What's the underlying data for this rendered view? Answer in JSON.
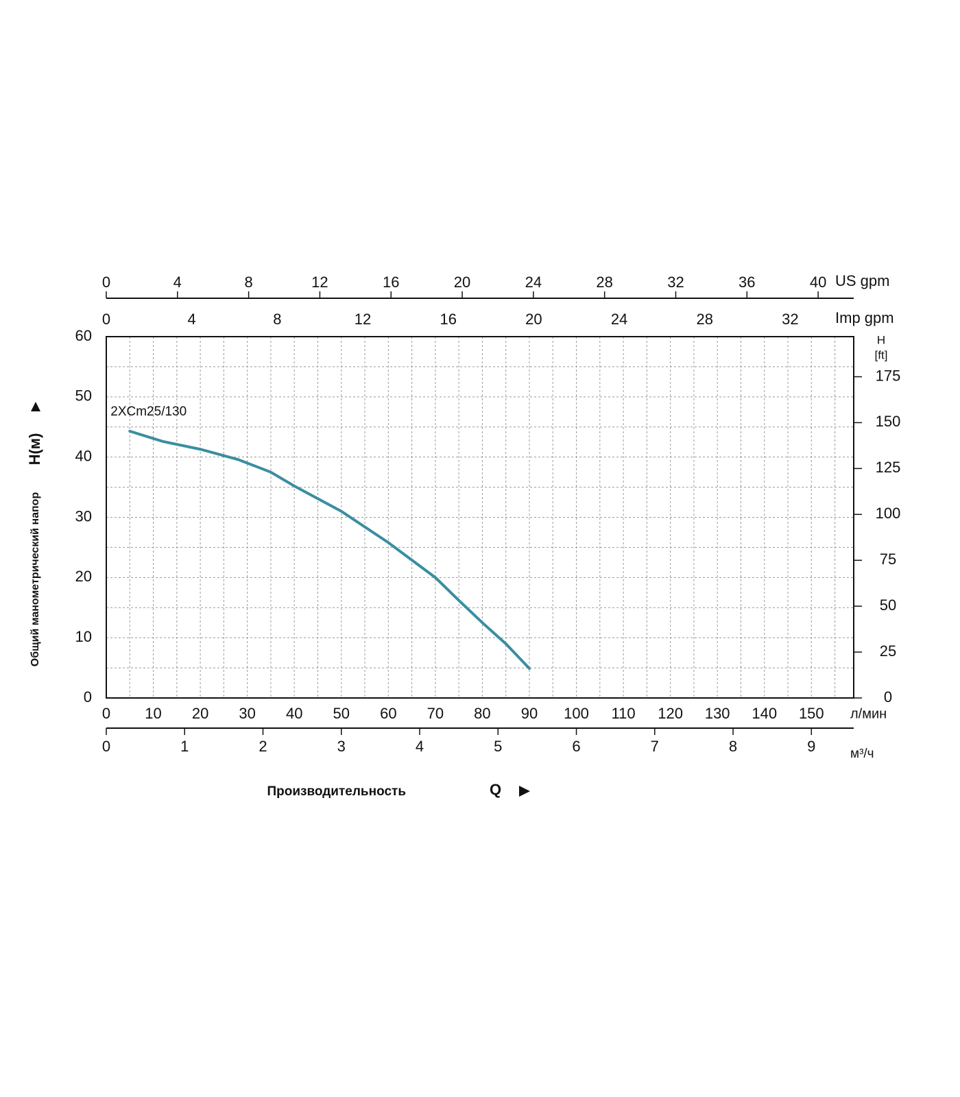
{
  "chart_data": {
    "type": "line",
    "series": [
      {
        "name": "2XCm25/130",
        "color": "#3a8ea0",
        "values": [
          44.3,
          42.6,
          41.3,
          39.6,
          37.5,
          35.2,
          31.0,
          25.8,
          20.0,
          16.2,
          12.5,
          9.0,
          4.9
        ]
      }
    ],
    "x": [
      5,
      12,
      20,
      28,
      35,
      40,
      50,
      60,
      70,
      75,
      80,
      85,
      90
    ],
    "xlim": [
      0,
      159
    ],
    "xticks": [
      0,
      10,
      20,
      30,
      40,
      50,
      60,
      70,
      80,
      90,
      100,
      110,
      120,
      130,
      140,
      150
    ],
    "minor_xticks": [
      5,
      15,
      25,
      35,
      45,
      55,
      65,
      75,
      85,
      95,
      105,
      115,
      125,
      135,
      145,
      155
    ],
    "xunit": "л/мин",
    "ylim": [
      0,
      60
    ],
    "yticks": [
      0,
      10,
      20,
      30,
      40,
      50,
      60
    ],
    "minor_yticks": [
      5,
      15,
      25,
      35,
      45,
      55
    ],
    "y2lim": [
      0,
      196.85
    ],
    "y2ticks": [
      0,
      25,
      50,
      75,
      100,
      125,
      150,
      175
    ],
    "y2label": [
      "H",
      "[ft]"
    ],
    "grid": true,
    "ylabel": "Общий манометрический напор",
    "ylabel_symbol": "H(м)",
    "xlabel": "Производительность",
    "xlabel_symbol": "Q",
    "extra_x_axes": [
      {
        "label": "US gpm",
        "position": "top",
        "xlim": [
          0,
          42.0
        ],
        "xticks": [
          0,
          4,
          8,
          12,
          16,
          20,
          24,
          28,
          32,
          36,
          40
        ]
      },
      {
        "label": "Imp gpm",
        "position": "top",
        "xlim": [
          0,
          34.97
        ],
        "xticks": [
          0,
          4,
          8,
          12,
          16,
          20,
          24,
          28,
          32
        ]
      },
      {
        "label": "м³/ч",
        "position": "bottom",
        "xlim": [
          0,
          9.54
        ],
        "xticks": [
          0,
          1,
          2,
          3,
          4,
          5,
          6,
          7,
          8,
          9
        ]
      }
    ]
  }
}
